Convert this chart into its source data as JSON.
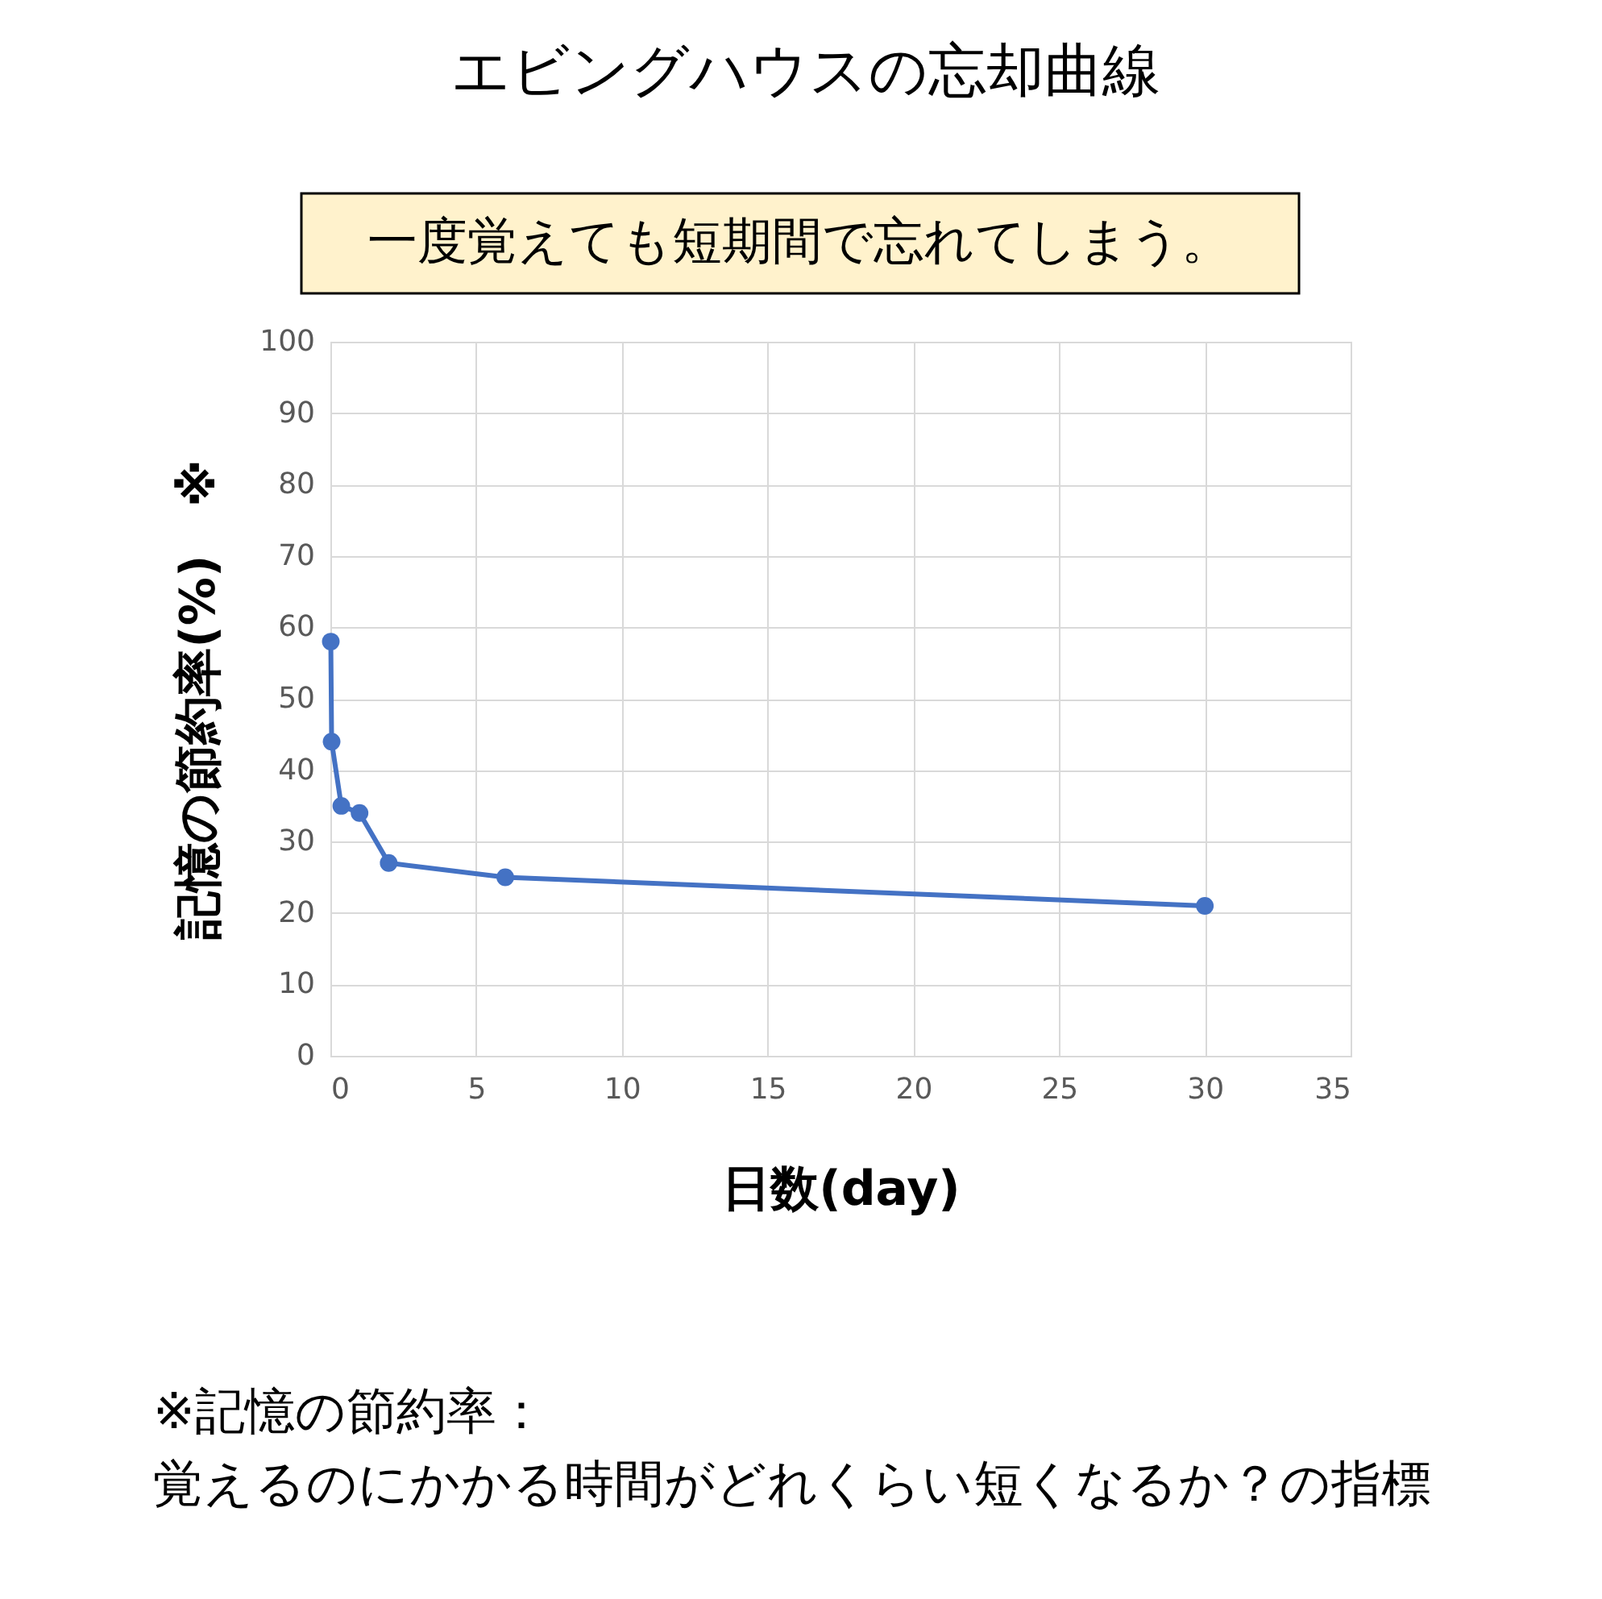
{
  "chart_data": {
    "type": "line",
    "title": "エビングハウスの忘却曲線",
    "subtitle": "一度覚えても短期間で忘れてしまう。",
    "xlabel": "日数(day)",
    "ylabel": "記憶の節約率(%)　※",
    "annotations": [
      "※記憶の節約率：",
      "覚えるのにかかる時間がどれくらい短くなるか？の指標"
    ],
    "x": [
      0.014,
      0.042,
      0.375,
      1,
      2,
      6,
      30
    ],
    "series": [
      {
        "color": "#4472c4",
        "values": [
          58,
          44,
          35,
          34,
          27,
          25,
          21
        ]
      }
    ],
    "xlim": [
      0,
      35
    ],
    "xticks": [
      0,
      5,
      10,
      15,
      20,
      25,
      30,
      35
    ],
    "ylim": [
      0,
      100
    ],
    "yticks": [
      0,
      10,
      20,
      30,
      40,
      50,
      60,
      70,
      80,
      90,
      100
    ],
    "grid": true,
    "marker": "circle",
    "line_style": "solid"
  }
}
